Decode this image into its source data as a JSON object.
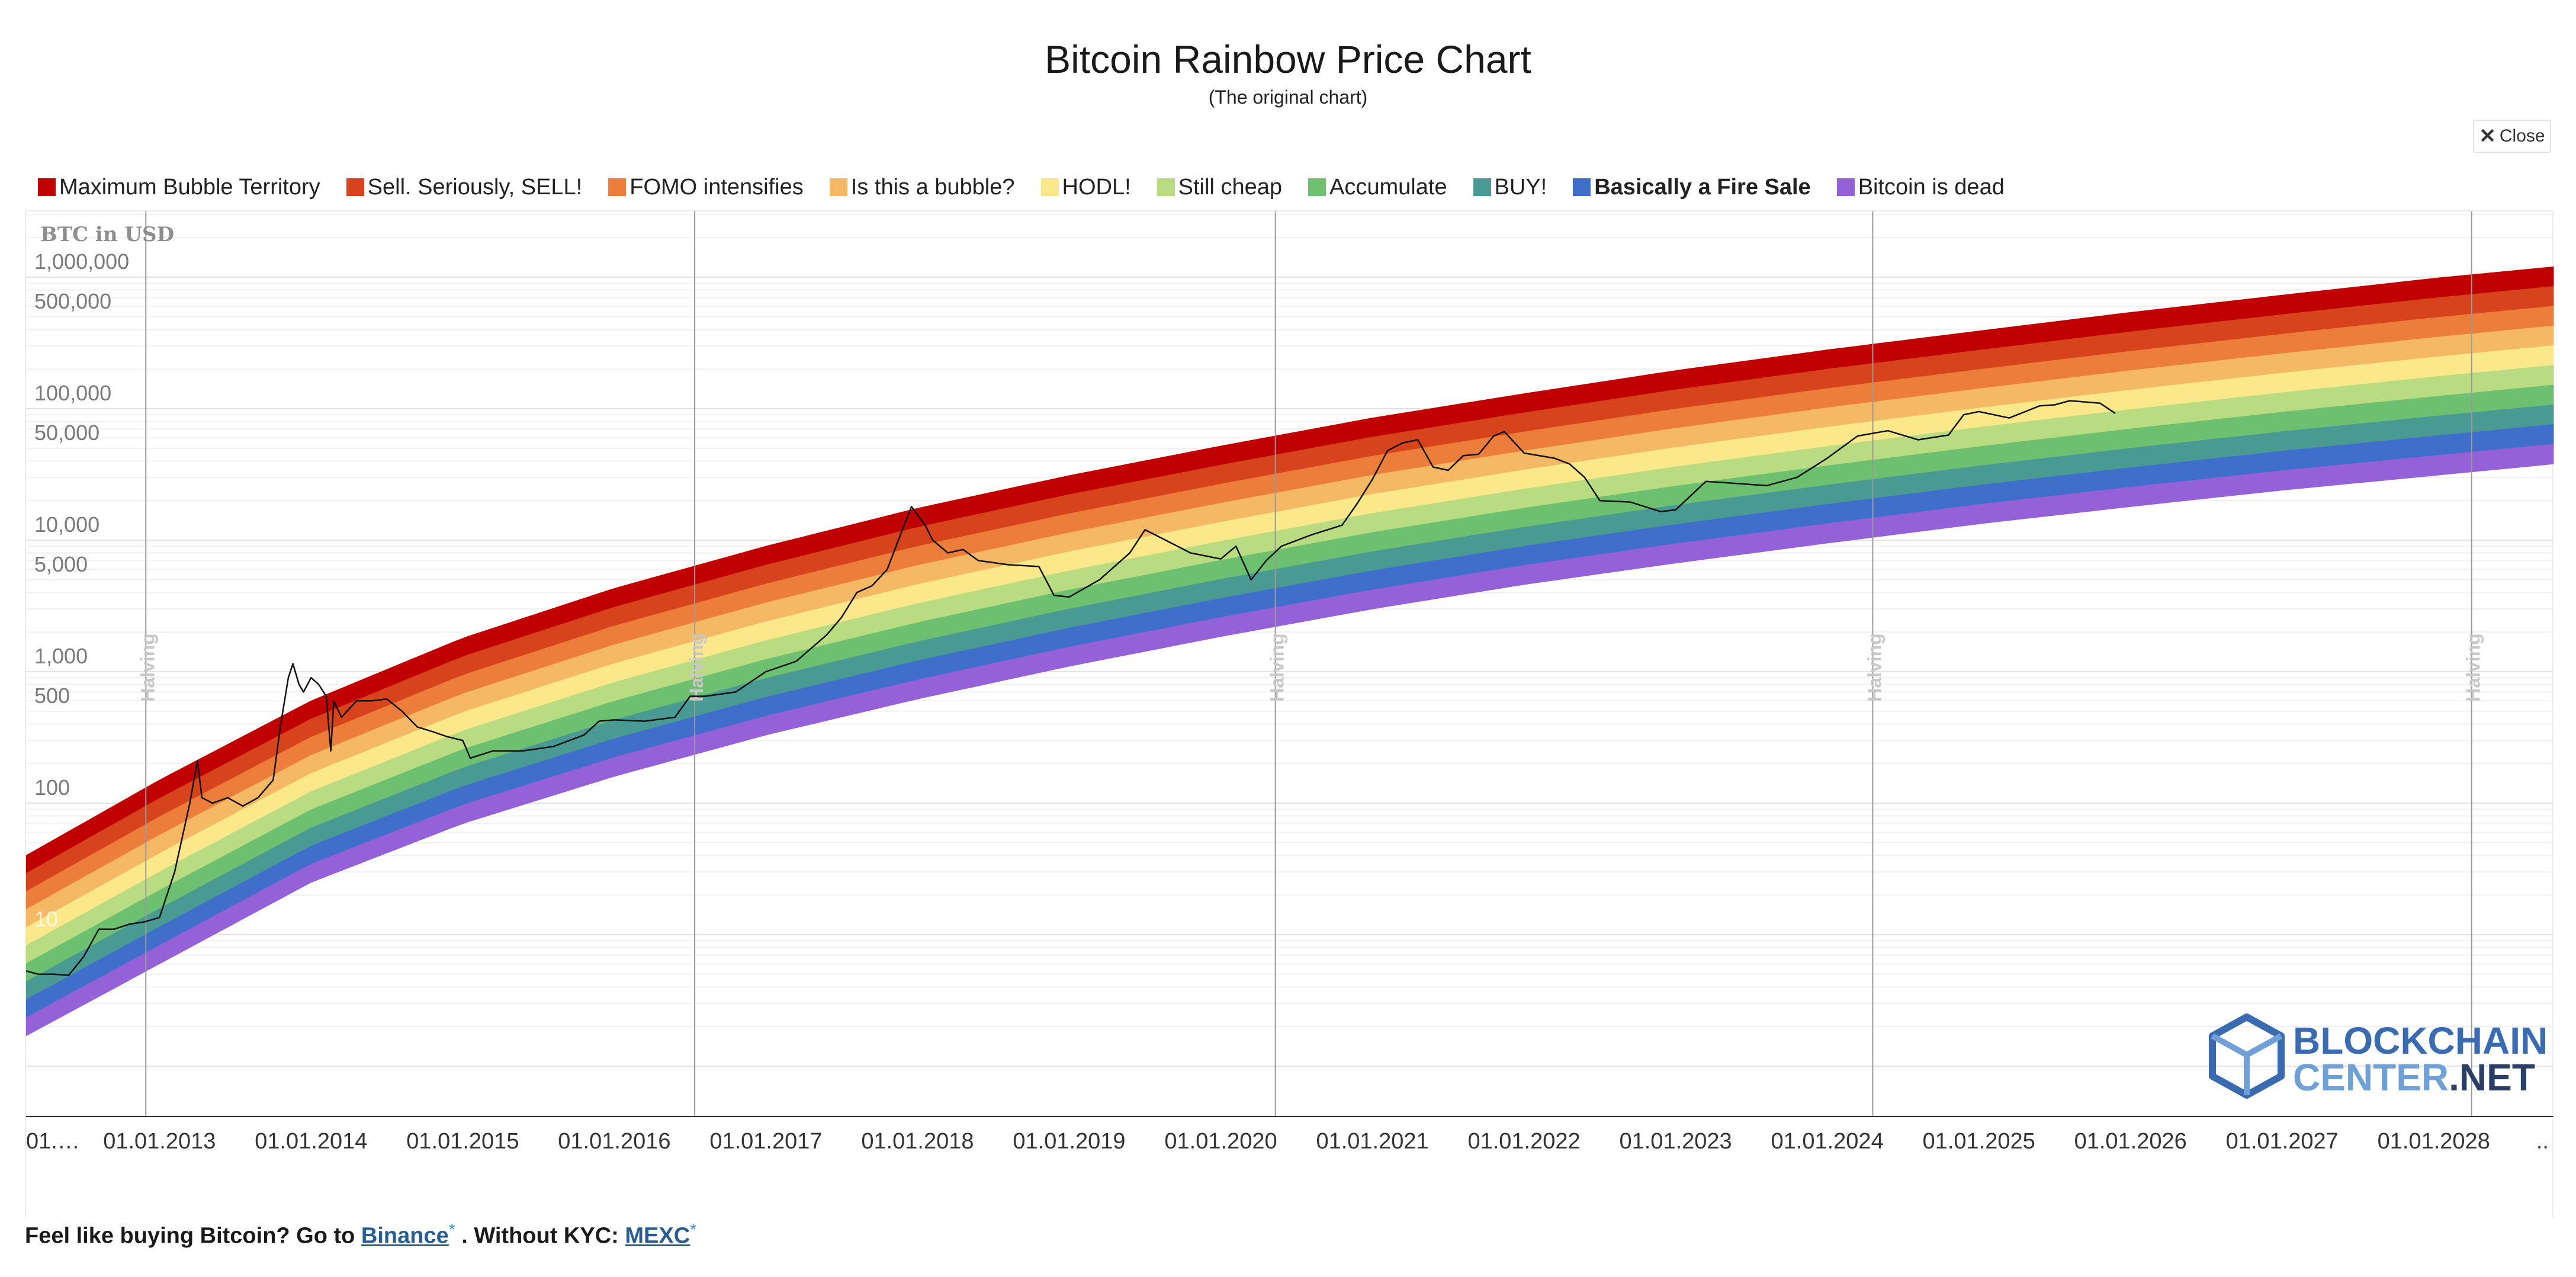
{
  "chart_data": {
    "type": "area",
    "title": "Bitcoin Rainbow Price Chart",
    "subtitle": "(The original chart)",
    "ylabel": "BTC in USD",
    "yscale": "log",
    "y_tick_labels": [
      "1,000,000",
      "500,000",
      "100,000",
      "50,000",
      "10,000",
      "5,000",
      "1,000",
      "500",
      "100",
      "50",
      "10"
    ],
    "y_tick_values": [
      1000000,
      500000,
      100000,
      50000,
      10000,
      5000,
      1000,
      500,
      100,
      50,
      10
    ],
    "x_tick_labels": [
      "01.…",
      "01.01.2013",
      "01.01.2014",
      "01.01.2015",
      "01.01.2016",
      "01.01.2017",
      "01.01.2018",
      "01.01.2019",
      "01.01.2020",
      "01.01.2021",
      "01.01.2022",
      "01.01.2023",
      "01.01.2024",
      "01.01.2025",
      "01.01.2026",
      "01.01.2027",
      "01.01.2028",
      ".."
    ],
    "x_tick_values": [
      2012.0,
      2013.0,
      2014.0,
      2015.0,
      2016.0,
      2017.0,
      2018.0,
      2019.0,
      2020.0,
      2021.0,
      2022.0,
      2023.0,
      2024.0,
      2025.0,
      2026.0,
      2027.0,
      2028.0,
      2028.66
    ],
    "xlim": [
      2012.12,
      2028.79
    ],
    "halvings": [
      {
        "date": 2012.91,
        "label": "Halving"
      },
      {
        "date": 2016.53,
        "label": "Halving"
      },
      {
        "date": 2020.36,
        "label": "Halving"
      },
      {
        "date": 2024.3,
        "label": "Halving"
      },
      {
        "date": 2028.25,
        "label": "Halving"
      }
    ],
    "legend_position": "top-left",
    "bands": [
      {
        "name": "Maximum Bubble Territory",
        "color": "#c00000"
      },
      {
        "name": "Sell. Seriously, SELL!",
        "color": "#d6431c"
      },
      {
        "name": "FOMO intensifies",
        "color": "#ec7d3a"
      },
      {
        "name": "Is this a bubble?",
        "color": "#f5b865"
      },
      {
        "name": "HODL!",
        "color": "#fbe88a"
      },
      {
        "name": "Still cheap",
        "color": "#b9dc82"
      },
      {
        "name": "Accumulate",
        "color": "#6cc070"
      },
      {
        "name": "BUY!",
        "color": "#4a9a94"
      },
      {
        "name": "Basically a Fire Sale",
        "color": "#3f6fca"
      },
      {
        "name": "Bitcoin is dead",
        "color": "#9561d8"
      }
    ],
    "band_bottom_curve": {
      "x": [
        2012.12,
        2013.0,
        2014.0,
        2015.0,
        2016.0,
        2017.0,
        2018.0,
        2019.0,
        2020.0,
        2021.0,
        2022.0,
        2023.0,
        2024.0,
        2025.0,
        2026.0,
        2027.0,
        2028.0,
        2028.79
      ],
      "y": [
        1.7,
        6,
        25,
        70,
        160,
        330,
        620,
        1100,
        1850,
        3000,
        4600,
        6700,
        9500,
        13300,
        18000,
        24000,
        31000,
        38000
      ]
    },
    "band_top_curve": {
      "x": [
        2012.12,
        2013.0,
        2014.0,
        2015.0,
        2016.0,
        2017.0,
        2018.0,
        2019.0,
        2020.0,
        2021.0,
        2022.0,
        2023.0,
        2024.0,
        2025.0,
        2026.0,
        2027.0,
        2028.0,
        2028.79
      ],
      "y": [
        40,
        150,
        600,
        1800,
        4300,
        9000,
        17500,
        31000,
        52000,
        85000,
        130000,
        195000,
        280000,
        390000,
        540000,
        730000,
        980000,
        1200000
      ]
    },
    "series": [
      {
        "name": "BTC price",
        "color": "#111111",
        "x": [
          2012.12,
          2012.2,
          2012.3,
          2012.4,
          2012.5,
          2012.6,
          2012.7,
          2012.8,
          2012.9,
          2013.0,
          2013.1,
          2013.2,
          2013.25,
          2013.28,
          2013.35,
          2013.45,
          2013.55,
          2013.65,
          2013.75,
          2013.8,
          2013.85,
          2013.88,
          2013.92,
          2013.95,
          2014.0,
          2014.05,
          2014.1,
          2014.13,
          2014.15,
          2014.2,
          2014.3,
          2014.4,
          2014.5,
          2014.6,
          2014.7,
          2014.8,
          2014.9,
          2015.0,
          2015.05,
          2015.2,
          2015.4,
          2015.6,
          2015.8,
          2015.9,
          2016.0,
          2016.2,
          2016.4,
          2016.5,
          2016.6,
          2016.8,
          2017.0,
          2017.2,
          2017.4,
          2017.5,
          2017.6,
          2017.7,
          2017.8,
          2017.9,
          2017.96,
          2018.05,
          2018.1,
          2018.2,
          2018.3,
          2018.4,
          2018.6,
          2018.8,
          2018.9,
          2019.0,
          2019.2,
          2019.4,
          2019.5,
          2019.6,
          2019.8,
          2020.0,
          2020.1,
          2020.2,
          2020.3,
          2020.4,
          2020.6,
          2020.8,
          2020.9,
          2021.0,
          2021.1,
          2021.2,
          2021.3,
          2021.4,
          2021.5,
          2021.6,
          2021.7,
          2021.8,
          2021.87,
          2022.0,
          2022.2,
          2022.3,
          2022.4,
          2022.5,
          2022.7,
          2022.9,
          2023.0,
          2023.2,
          2023.4,
          2023.6,
          2023.8,
          2024.0,
          2024.2,
          2024.4,
          2024.6,
          2024.8,
          2024.9,
          2025.0,
          2025.2,
          2025.4,
          2025.5,
          2025.6,
          2025.8,
          2025.9
        ],
        "y": [
          5.3,
          5.0,
          5.0,
          4.9,
          6.8,
          11,
          11,
          12,
          12.5,
          13.5,
          30,
          100,
          210,
          110,
          100,
          110,
          95,
          110,
          150,
          400,
          900,
          1150,
          800,
          700,
          900,
          800,
          650,
          250,
          600,
          450,
          600,
          600,
          620,
          500,
          380,
          350,
          320,
          300,
          220,
          250,
          250,
          270,
          330,
          420,
          430,
          420,
          450,
          650,
          650,
          700,
          1000,
          1200,
          1900,
          2600,
          4000,
          4500,
          6000,
          12000,
          18000,
          13000,
          10000,
          8000,
          8500,
          7000,
          6500,
          6300,
          3800,
          3700,
          5000,
          8000,
          12000,
          10500,
          8000,
          7200,
          9000,
          5000,
          7000,
          9000,
          11000,
          13000,
          19000,
          29000,
          48000,
          55000,
          58000,
          36000,
          34000,
          44000,
          45000,
          62000,
          67000,
          46000,
          42000,
          38000,
          30000,
          20000,
          19500,
          16500,
          17000,
          28000,
          27000,
          26000,
          30000,
          42000,
          62000,
          68000,
          58000,
          63000,
          90000,
          95000,
          85000,
          105000,
          107000,
          115000,
          110000,
          92000
        ]
      }
    ]
  },
  "close_button": {
    "label": "Close",
    "icon": "close-icon"
  },
  "watermark": {
    "line1": "BLOCKCHAIN",
    "line2a": "CENTER",
    "line2b": ".NET",
    "icon": "cube-logo-icon"
  },
  "footer": {
    "lead": "Feel like buying Bitcoin? Go to ",
    "link1": "Binance",
    "star": "*",
    "mid": " . Without KYC: ",
    "link2": "MEXC"
  }
}
